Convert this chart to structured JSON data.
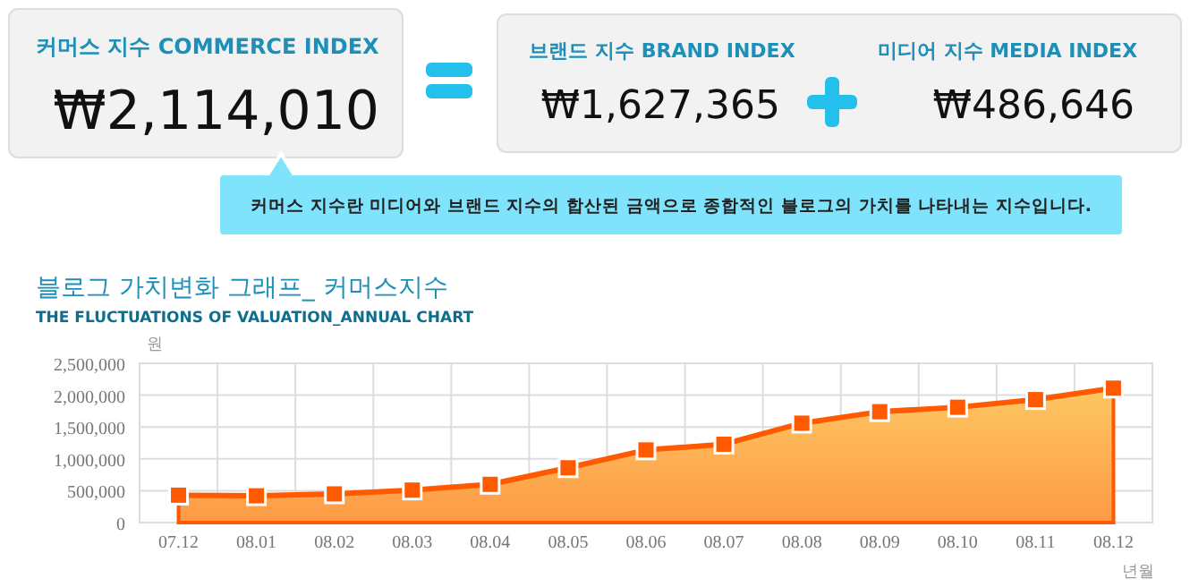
{
  "chart_data": [
    {
      "type": "other",
      "annotations": [
        "커머스 지수 COMMERCE INDEX",
        "₩2,114,010",
        "브랜드 지수 BRAND INDEX",
        "₩1,627,365",
        "미디어 지수 MEDIA INDEX",
        "₩486,646",
        "커머스 지수란 미디어와 브랜드 지수의 합산된 금액으로 종합적인 블로그의 가치를 나타내는 지수입니다."
      ]
    },
    {
      "type": "area",
      "title": "블로그 가치변화 그래프_ 커머스지수",
      "subtitle": "THE FLUCTUATIONS OF VALUATION_ANNUAL CHART",
      "ylabel": "원",
      "xlabel": "년월",
      "categories": [
        "07.12",
        "08.01",
        "08.02",
        "08.03",
        "08.04",
        "08.05",
        "08.06",
        "08.07",
        "08.08",
        "08.09",
        "08.10",
        "08.11",
        "08.12"
      ],
      "series": [
        {
          "color": "#ff5a00",
          "values": [
            430000,
            420000,
            450000,
            510000,
            600000,
            860000,
            1140000,
            1230000,
            1560000,
            1740000,
            1810000,
            1930000,
            2110000
          ]
        }
      ],
      "ylim": [
        0,
        2500000
      ],
      "yticks": [
        {
          "value": 0,
          "label": "0"
        },
        {
          "value": 500000,
          "label": "500,000"
        },
        {
          "value": 1000000,
          "label": "1,000,000"
        },
        {
          "value": 1500000,
          "label": "1,500,000"
        },
        {
          "value": 2000000,
          "label": "2,000,000"
        },
        {
          "value": 2500000,
          "label": "2,500,000"
        }
      ],
      "grid": true,
      "marker": "square"
    }
  ]
}
